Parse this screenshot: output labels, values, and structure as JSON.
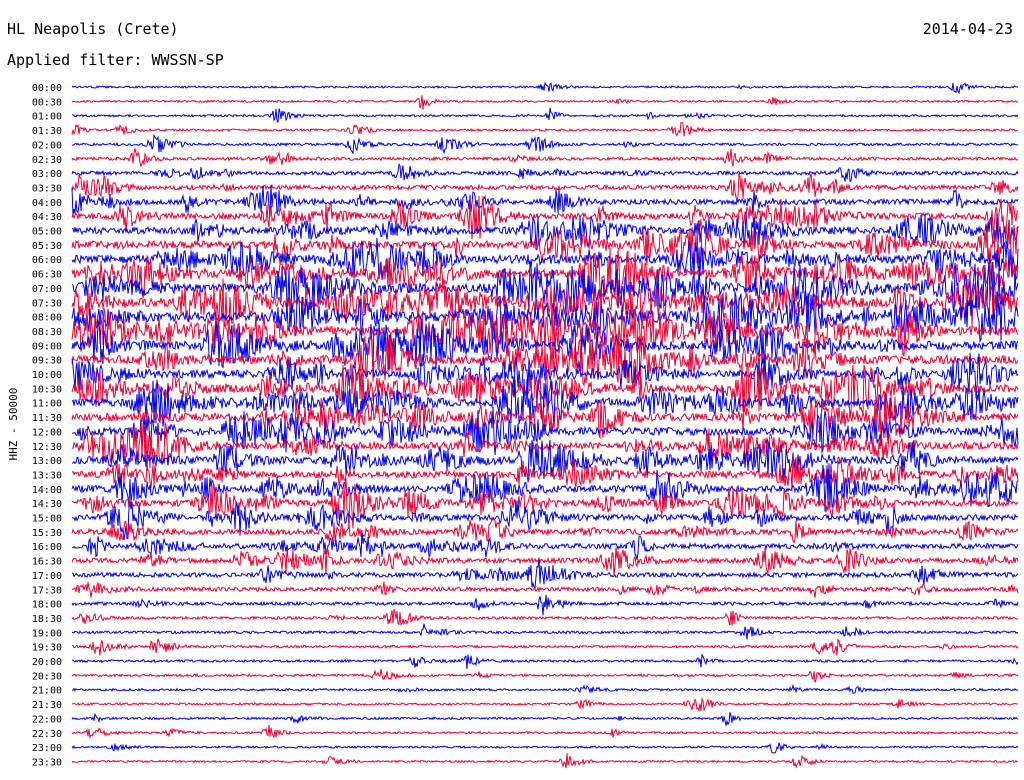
{
  "header": {
    "station": "HL Neapolis (Crete)",
    "date": "2014-04-23",
    "filter_label": "Applied filter: WWSSN-SP"
  },
  "channel_label": "HHZ - 50000",
  "chart_data": {
    "type": "line",
    "title": "HL Neapolis (Crete)",
    "subtitle": "Applied filter: WWSSN-SP",
    "ylabel": "HHZ - 50000",
    "row_labels": [
      "00:00",
      "00:30",
      "01:00",
      "01:30",
      "02:00",
      "02:30",
      "03:00",
      "03:30",
      "04:00",
      "04:30",
      "05:00",
      "05:30",
      "06:00",
      "06:30",
      "07:00",
      "07:30",
      "08:00",
      "08:30",
      "09:00",
      "09:30",
      "10:00",
      "10:30",
      "11:00",
      "11:30",
      "12:00",
      "12:30",
      "13:00",
      "13:30",
      "14:00",
      "14:30",
      "15:00",
      "15:30",
      "16:00",
      "16:30",
      "17:00",
      "17:30",
      "18:00",
      "18:30",
      "19:00",
      "19:30",
      "20:00",
      "20:30",
      "21:00",
      "21:30",
      "22:00",
      "22:30",
      "23:00",
      "23:30"
    ],
    "row_minutes": 30,
    "trace_colors": [
      "#0000ee",
      "#ee0033"
    ],
    "activity_level": [
      0.06,
      0.06,
      0.07,
      0.09,
      0.14,
      0.2,
      0.26,
      0.34,
      0.45,
      0.55,
      0.62,
      0.7,
      0.78,
      0.82,
      0.85,
      0.85,
      0.85,
      0.82,
      0.78,
      0.75,
      0.72,
      0.72,
      0.72,
      0.7,
      0.7,
      0.66,
      0.64,
      0.6,
      0.58,
      0.55,
      0.5,
      0.46,
      0.44,
      0.4,
      0.36,
      0.3,
      0.2,
      0.15,
      0.13,
      0.12,
      0.11,
      0.1,
      0.09,
      0.08,
      0.08,
      0.07,
      0.06,
      0.06
    ],
    "grid": false
  },
  "colors": {
    "blue_trace": "#0000ee",
    "red_trace": "#ee0033",
    "background": "#ffffff"
  }
}
